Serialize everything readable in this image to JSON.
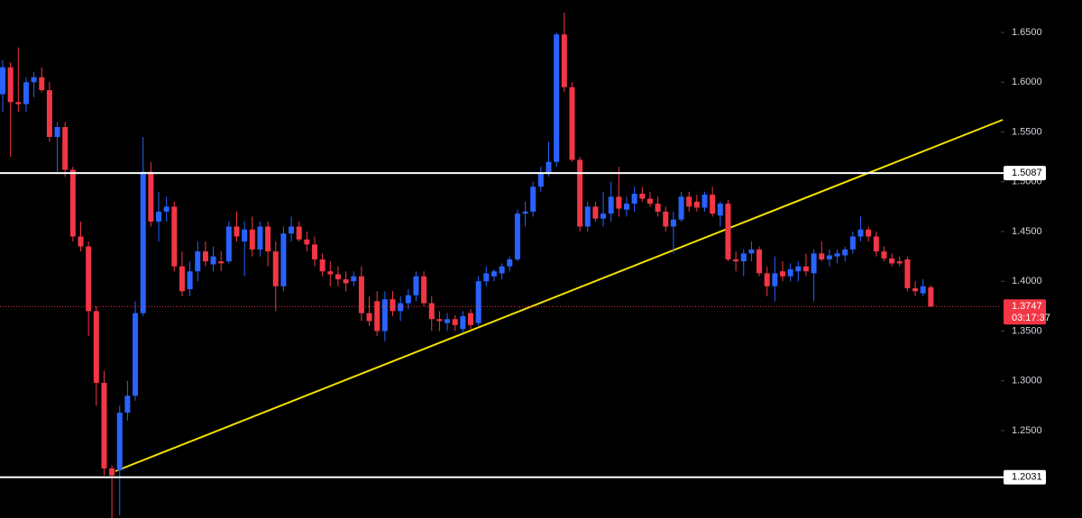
{
  "chart_data": {
    "type": "candlestick",
    "up_color": "#2962ff",
    "down_color": "#f23645",
    "open": [
      1.588,
      1.615,
      1.58,
      1.578,
      1.6,
      1.605,
      1.592,
      1.545,
      1.555,
      1.512,
      1.445,
      1.435,
      1.37,
      1.298,
      1.212,
      1.21,
      1.268,
      1.285,
      1.368,
      1.51,
      1.46,
      1.47,
      1.475,
      1.415,
      1.392,
      1.41,
      1.43,
      1.417,
      1.42,
      1.42,
      1.455,
      1.44,
      1.452,
      1.432,
      1.455,
      1.43,
      1.395,
      1.448,
      1.455,
      1.442,
      1.437,
      1.422,
      1.41,
      1.407,
      1.402,
      1.4,
      1.405,
      1.368,
      1.38,
      1.35,
      1.382,
      1.37,
      1.378,
      1.386,
      1.405,
      1.378,
      1.362,
      1.358,
      1.362,
      1.352,
      1.368,
      1.358,
      1.4,
      1.405,
      1.408,
      1.415,
      1.422,
      1.468,
      1.47,
      1.495,
      1.508,
      1.52,
      1.648,
      1.595,
      1.522,
      1.455,
      1.475,
      1.463,
      1.468,
      1.485,
      1.472,
      1.478,
      1.488,
      1.483,
      1.478,
      1.47,
      1.455,
      1.462,
      1.485,
      1.48,
      1.474,
      1.487,
      1.466,
      1.478,
      1.422,
      1.42,
      1.428,
      1.432,
      1.408,
      1.395,
      1.41,
      1.405,
      1.41,
      1.415,
      1.408,
      1.428,
      1.422,
      1.425,
      1.426,
      1.432,
      1.445,
      1.452,
      1.445,
      1.43,
      1.423,
      1.42,
      1.422,
      1.393,
      1.388,
      1.394
    ],
    "high": [
      1.622,
      1.62,
      1.635,
      1.605,
      1.61,
      1.615,
      1.6,
      1.56,
      1.56,
      1.515,
      1.46,
      1.44,
      1.375,
      1.31,
      1.215,
      1.275,
      1.3,
      1.38,
      1.545,
      1.52,
      1.49,
      1.485,
      1.48,
      1.43,
      1.42,
      1.44,
      1.44,
      1.435,
      1.43,
      1.46,
      1.47,
      1.46,
      1.465,
      1.46,
      1.46,
      1.44,
      1.455,
      1.465,
      1.46,
      1.45,
      1.445,
      1.428,
      1.42,
      1.415,
      1.41,
      1.41,
      1.415,
      1.385,
      1.39,
      1.39,
      1.39,
      1.385,
      1.392,
      1.41,
      1.41,
      1.385,
      1.37,
      1.368,
      1.366,
      1.37,
      1.372,
      1.405,
      1.415,
      1.412,
      1.418,
      1.425,
      1.472,
      1.48,
      1.5,
      1.515,
      1.54,
      1.65,
      1.67,
      1.6,
      1.525,
      1.48,
      1.48,
      1.49,
      1.5,
      1.515,
      1.485,
      1.495,
      1.495,
      1.49,
      1.485,
      1.475,
      1.47,
      1.49,
      1.49,
      1.487,
      1.49,
      1.495,
      1.48,
      1.482,
      1.43,
      1.432,
      1.44,
      1.435,
      1.415,
      1.425,
      1.42,
      1.418,
      1.42,
      1.428,
      1.432,
      1.44,
      1.432,
      1.432,
      1.435,
      1.45,
      1.465,
      1.455,
      1.45,
      1.435,
      1.428,
      1.425,
      1.425,
      1.4,
      1.402,
      1.396
    ],
    "low": [
      1.57,
      1.525,
      1.57,
      1.57,
      1.585,
      1.59,
      1.54,
      1.51,
      1.505,
      1.44,
      1.43,
      1.345,
      1.275,
      1.205,
      1.16,
      1.165,
      1.26,
      1.28,
      1.365,
      1.455,
      1.44,
      1.46,
      1.41,
      1.385,
      1.385,
      1.4,
      1.415,
      1.41,
      1.41,
      1.418,
      1.44,
      1.405,
      1.425,
      1.425,
      1.415,
      1.37,
      1.39,
      1.44,
      1.44,
      1.43,
      1.415,
      1.405,
      1.395,
      1.395,
      1.39,
      1.395,
      1.36,
      1.355,
      1.345,
      1.34,
      1.365,
      1.36,
      1.372,
      1.38,
      1.375,
      1.35,
      1.35,
      1.35,
      1.35,
      1.348,
      1.352,
      1.355,
      1.395,
      1.4,
      1.402,
      1.41,
      1.42,
      1.455,
      1.465,
      1.49,
      1.505,
      1.515,
      1.59,
      1.52,
      1.45,
      1.45,
      1.46,
      1.455,
      1.46,
      1.465,
      1.465,
      1.47,
      1.48,
      1.475,
      1.465,
      1.45,
      1.428,
      1.46,
      1.47,
      1.47,
      1.47,
      1.465,
      1.455,
      1.42,
      1.41,
      1.405,
      1.42,
      1.405,
      1.385,
      1.38,
      1.4,
      1.4,
      1.4,
      1.405,
      1.38,
      1.42,
      1.415,
      1.418,
      1.42,
      1.428,
      1.44,
      1.44,
      1.425,
      1.42,
      1.415,
      1.415,
      1.39,
      1.385,
      1.385,
      1.374
    ],
    "close": [
      1.615,
      1.58,
      1.578,
      1.6,
      1.605,
      1.592,
      1.545,
      1.555,
      1.512,
      1.445,
      1.435,
      1.37,
      1.298,
      1.212,
      1.205,
      1.268,
      1.285,
      1.368,
      1.51,
      1.46,
      1.47,
      1.475,
      1.415,
      1.39,
      1.41,
      1.43,
      1.42,
      1.425,
      1.418,
      1.455,
      1.445,
      1.452,
      1.432,
      1.455,
      1.43,
      1.395,
      1.448,
      1.455,
      1.442,
      1.437,
      1.422,
      1.41,
      1.407,
      1.402,
      1.398,
      1.405,
      1.368,
      1.36,
      1.35,
      1.382,
      1.37,
      1.378,
      1.386,
      1.405,
      1.378,
      1.362,
      1.36,
      1.362,
      1.356,
      1.365,
      1.356,
      1.4,
      1.408,
      1.41,
      1.415,
      1.422,
      1.468,
      1.47,
      1.495,
      1.508,
      1.52,
      1.648,
      1.595,
      1.522,
      1.455,
      1.475,
      1.463,
      1.468,
      1.485,
      1.473,
      1.478,
      1.488,
      1.483,
      1.478,
      1.47,
      1.455,
      1.462,
      1.485,
      1.475,
      1.474,
      1.487,
      1.468,
      1.478,
      1.422,
      1.42,
      1.428,
      1.432,
      1.408,
      1.395,
      1.408,
      1.405,
      1.412,
      1.415,
      1.41,
      1.428,
      1.422,
      1.426,
      1.428,
      1.432,
      1.445,
      1.452,
      1.445,
      1.43,
      1.423,
      1.418,
      1.418,
      1.393,
      1.39,
      1.395,
      1.3747
    ],
    "ylim": [
      1.1622,
      1.6826
    ],
    "yticks": [
      {
        "value": 1.25,
        "label": "1.2500"
      },
      {
        "value": 1.3,
        "label": "1.3000"
      },
      {
        "value": 1.35,
        "label": "1.3500"
      },
      {
        "value": 1.4,
        "label": "1.4000"
      },
      {
        "value": 1.45,
        "label": "1.4500"
      },
      {
        "value": 1.5,
        "label": "1.5000"
      },
      {
        "value": 1.55,
        "label": "1.5500"
      },
      {
        "value": 1.6,
        "label": "1.6000"
      },
      {
        "value": 1.65,
        "label": "1.6500"
      }
    ],
    "levels": [
      1.5087,
      1.2031
    ],
    "last_price": 1.3747,
    "countdown": "03:17:37"
  }
}
